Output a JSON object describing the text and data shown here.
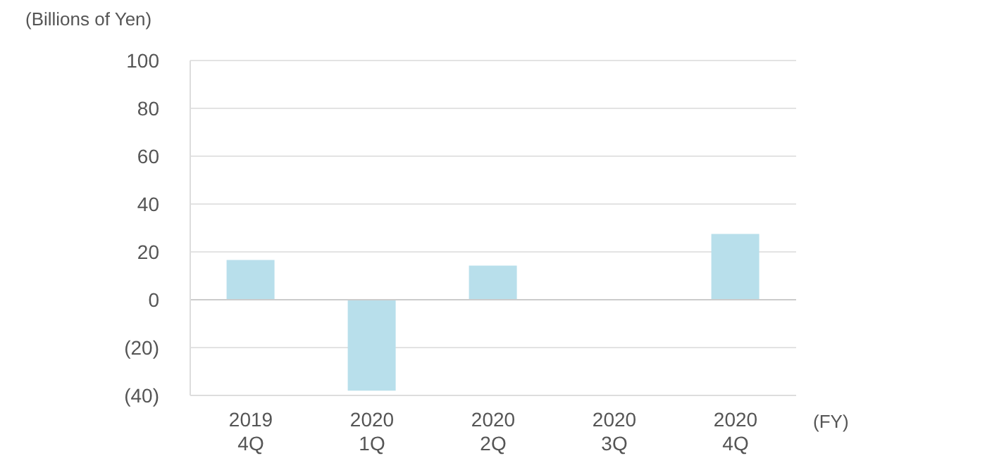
{
  "chart_data": {
    "type": "bar",
    "ylabel": "(Billions of Yen)",
    "xlabel": "(FY)",
    "categories": [
      "2019\n4Q",
      "2020\n1Q",
      "2020\n2Q",
      "2020\n3Q",
      "2020\n4Q"
    ],
    "values": [
      16.6,
      -38,
      14.3,
      0.3,
      27.5
    ],
    "color": "#b8dfeb",
    "ylim": [
      -40,
      100
    ],
    "yticks": [
      {
        "value": -40,
        "label": "(40)"
      },
      {
        "value": -20,
        "label": "(20)"
      },
      0,
      20,
      40,
      60,
      80,
      100
    ],
    "grid": "y",
    "legend": false
  }
}
